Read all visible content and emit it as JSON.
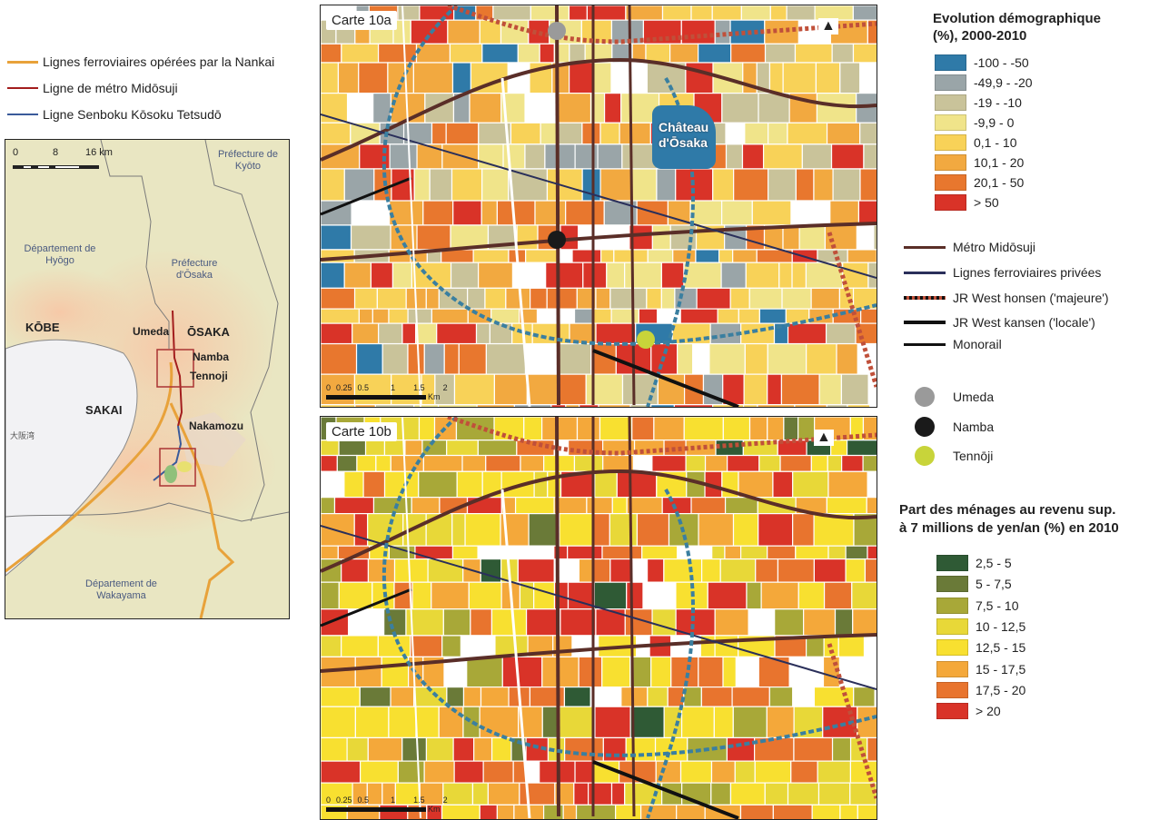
{
  "line_legend_left": [
    {
      "label": "Lignes ferroviaires opérées par la Nankai",
      "color": "#e8a23a"
    },
    {
      "label": "Ligne de métro Midōsuji",
      "color": "#a31d1d"
    },
    {
      "label": "Ligne Senboku Kōsoku Tetsudō",
      "color": "#3a5a9a"
    }
  ],
  "inset_map": {
    "scale": {
      "ticks": [
        "0",
        "8",
        "16 km"
      ]
    },
    "regions": {
      "kyoto": "Préfecture de Kyōto",
      "hyogo": "Département de Hyōgo",
      "osaka_pref": "Préfecture d'Ōsaka",
      "wakayama": "Département de Wakayama",
      "bay": "大阪湾"
    },
    "cities": {
      "kobe": "KŌBE",
      "osaka": "ŌSAKA",
      "sakai": "SAKAI",
      "umeda": "Umeda",
      "namba": "Namba",
      "tennoji": "Tennoji",
      "nakamozu": "Nakamozu"
    }
  },
  "map_a": {
    "label": "Carte 10a",
    "landmark": "Château d'Ōsaka",
    "scale": {
      "ticks": [
        "0",
        "0.25",
        "0.5",
        "1",
        "1.5",
        "2"
      ],
      "unit": "Km"
    }
  },
  "map_b": {
    "label": "Carte 10b",
    "scale": {
      "ticks": [
        "0",
        "0.25",
        "0.5",
        "1",
        "1.5",
        "2"
      ],
      "unit": "Km"
    }
  },
  "legend_a": {
    "title_line1": "Evolution démographique",
    "title_line2": "(%), 2000-2010",
    "classes": [
      {
        "label": "-100 - -50",
        "color": "#2f7aa8"
      },
      {
        "label": "-49,9 - -20",
        "color": "#9aa5a8"
      },
      {
        "label": "-19 - -10",
        "color": "#c9c39a"
      },
      {
        "label": "-9,9 - 0",
        "color": "#f0e48a"
      },
      {
        "label": "0,1 - 10",
        "color": "#f8d258"
      },
      {
        "label": "10,1 - 20",
        "color": "#f2a940"
      },
      {
        "label": "20,1 - 50",
        "color": "#e8772e"
      },
      {
        "label": "> 50",
        "color": "#d93328"
      }
    ]
  },
  "network_legend": [
    {
      "label": "Métro Midōsuji",
      "color": "#5a2e28",
      "style": "solid"
    },
    {
      "label": "Lignes ferroviaires privées",
      "color": "#2a2f5a",
      "style": "solid"
    },
    {
      "label": "JR West honsen ('majeure')",
      "color": "#c0503a",
      "style": "dashed"
    },
    {
      "label": "JR West kansen ('locale')",
      "color": "#111111",
      "style": "thick"
    },
    {
      "label": "Monorail",
      "color": "#111111",
      "style": "solid"
    }
  ],
  "station_legend": [
    {
      "label": "Umeda",
      "color": "#9a9a9a"
    },
    {
      "label": "Namba",
      "color": "#1a1a1a"
    },
    {
      "label": "Tennōji",
      "color": "#c8d43a"
    }
  ],
  "legend_b": {
    "title_line1": "Part des ménages au revenu sup.",
    "title_line2": "à 7 millions de yen/an (%) en 2010",
    "classes": [
      {
        "label": "2,5 - 5",
        "color": "#2f5a35"
      },
      {
        "label": "5 - 7,5",
        "color": "#6a7a38"
      },
      {
        "label": "7,5 - 10",
        "color": "#a8a838"
      },
      {
        "label": "10 - 12,5",
        "color": "#e8d838"
      },
      {
        "label": "12,5 - 15",
        "color": "#f8e030"
      },
      {
        "label": "15 - 17,5",
        "color": "#f4a83a"
      },
      {
        "label": "17,5 - 20",
        "color": "#e8742e"
      },
      {
        "label": "> 20",
        "color": "#d93328"
      }
    ]
  }
}
